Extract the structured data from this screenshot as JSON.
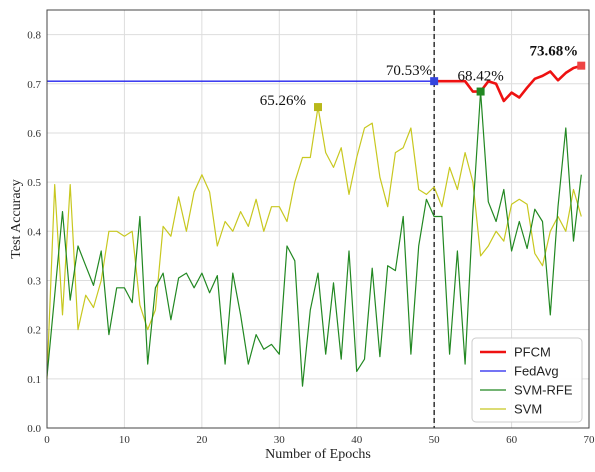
{
  "chart_data": {
    "type": "line",
    "xlabel": "Number of Epochs",
    "ylabel": "Test Accuracy",
    "xlim": [
      0,
      70
    ],
    "ylim": [
      0,
      0.85
    ],
    "xticks": [
      0,
      10,
      20,
      30,
      40,
      50,
      60,
      70
    ],
    "yticks": [
      0.0,
      0.1,
      0.2,
      0.3,
      0.4,
      0.5,
      0.6,
      0.7,
      0.8
    ],
    "grid": true,
    "legend_position": "bottom-right",
    "vline": {
      "x": 50,
      "style": "dashed",
      "color": "#000000"
    },
    "series": [
      {
        "name": "PFCM",
        "color": "#ee1111",
        "x": [
          50,
          51,
          52,
          53,
          54,
          55,
          56,
          57,
          58,
          59,
          60,
          61,
          62,
          63,
          64,
          65,
          66,
          67,
          68,
          69
        ],
        "y": [
          0.7053,
          0.7053,
          0.7053,
          0.7053,
          0.7053,
          0.684,
          0.6842,
          0.705,
          0.7,
          0.665,
          0.682,
          0.672,
          0.692,
          0.71,
          0.716,
          0.725,
          0.707,
          0.722,
          0.732,
          0.7368
        ]
      },
      {
        "name": "FedAvg",
        "color": "#2222ee",
        "x": [
          0,
          50
        ],
        "y": [
          0.7053,
          0.7053
        ]
      },
      {
        "name": "SVM-RFE",
        "color": "#228822",
        "x": [
          0,
          1,
          2,
          3,
          4,
          5,
          6,
          7,
          8,
          9,
          10,
          11,
          12,
          13,
          14,
          15,
          16,
          17,
          18,
          19,
          20,
          21,
          22,
          23,
          24,
          25,
          26,
          27,
          28,
          29,
          30,
          31,
          32,
          33,
          34,
          35,
          36,
          37,
          38,
          39,
          40,
          41,
          42,
          43,
          44,
          45,
          46,
          47,
          48,
          49,
          50,
          51,
          52,
          53,
          54,
          55,
          56,
          57,
          58,
          59,
          60,
          61,
          62,
          63,
          64,
          65,
          66,
          67,
          68,
          69
        ],
        "y": [
          0.105,
          0.27,
          0.44,
          0.26,
          0.37,
          0.33,
          0.29,
          0.36,
          0.19,
          0.285,
          0.285,
          0.255,
          0.43,
          0.13,
          0.285,
          0.315,
          0.22,
          0.305,
          0.315,
          0.285,
          0.315,
          0.275,
          0.31,
          0.13,
          0.315,
          0.23,
          0.13,
          0.19,
          0.16,
          0.17,
          0.15,
          0.37,
          0.34,
          0.085,
          0.24,
          0.315,
          0.15,
          0.295,
          0.14,
          0.36,
          0.115,
          0.14,
          0.325,
          0.145,
          0.33,
          0.32,
          0.43,
          0.15,
          0.37,
          0.465,
          0.43,
          0.43,
          0.15,
          0.36,
          0.13,
          0.44,
          0.6842,
          0.46,
          0.42,
          0.485,
          0.36,
          0.42,
          0.365,
          0.445,
          0.42,
          0.23,
          0.45,
          0.61,
          0.38,
          0.515
        ]
      },
      {
        "name": "SVM",
        "color": "#c8c820",
        "x": [
          0,
          1,
          2,
          3,
          4,
          5,
          6,
          7,
          8,
          9,
          10,
          11,
          12,
          13,
          14,
          15,
          16,
          17,
          18,
          19,
          20,
          21,
          22,
          23,
          24,
          25,
          26,
          27,
          28,
          29,
          30,
          31,
          32,
          33,
          34,
          35,
          36,
          37,
          38,
          39,
          40,
          41,
          42,
          43,
          44,
          45,
          46,
          47,
          48,
          49,
          50,
          51,
          52,
          53,
          54,
          55,
          56,
          57,
          58,
          59,
          60,
          61,
          62,
          63,
          64,
          65,
          66,
          67,
          68,
          69
        ],
        "y": [
          0.1,
          0.495,
          0.23,
          0.495,
          0.2,
          0.27,
          0.245,
          0.3,
          0.4,
          0.4,
          0.39,
          0.4,
          0.25,
          0.2,
          0.24,
          0.41,
          0.39,
          0.47,
          0.4,
          0.48,
          0.515,
          0.48,
          0.37,
          0.42,
          0.4,
          0.44,
          0.41,
          0.465,
          0.4,
          0.45,
          0.45,
          0.42,
          0.5,
          0.55,
          0.55,
          0.6526,
          0.56,
          0.53,
          0.57,
          0.475,
          0.55,
          0.61,
          0.62,
          0.51,
          0.45,
          0.56,
          0.57,
          0.61,
          0.485,
          0.475,
          0.49,
          0.45,
          0.53,
          0.485,
          0.56,
          0.5,
          0.35,
          0.37,
          0.4,
          0.38,
          0.455,
          0.465,
          0.455,
          0.355,
          0.33,
          0.4,
          0.43,
          0.4,
          0.485,
          0.43
        ]
      }
    ],
    "markers": [
      {
        "x": 35,
        "y": 0.6526,
        "color": "#b8b81a",
        "label": "65.26%"
      },
      {
        "x": 50,
        "y": 0.7053,
        "color": "#3344dd",
        "label": "70.53%"
      },
      {
        "x": 56,
        "y": 0.6842,
        "color": "#228822",
        "label": "68.42%"
      },
      {
        "x": 69,
        "y": 0.7368,
        "color": "#ee4444",
        "label": "73.68%",
        "bold": true
      }
    ]
  }
}
